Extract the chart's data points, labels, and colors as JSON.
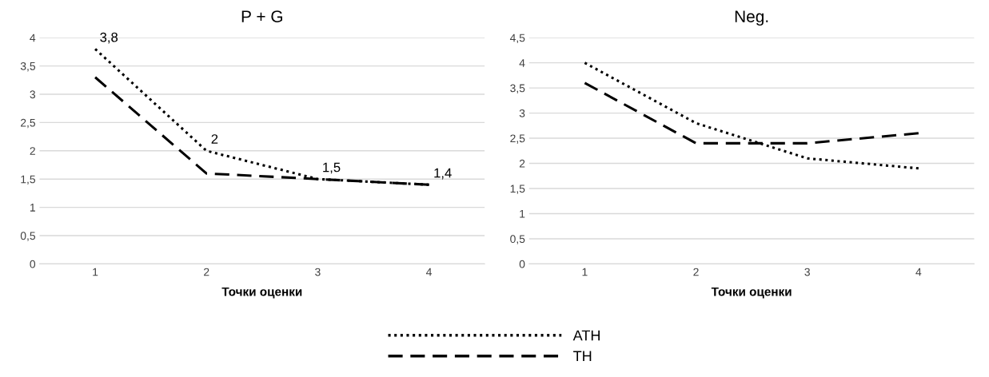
{
  "chart_data": [
    {
      "type": "line",
      "title": "P + G",
      "xlabel": "Точки оценки",
      "categories": [
        "1",
        "2",
        "3",
        "4"
      ],
      "ylim": [
        0,
        4
      ],
      "yticks": [
        0,
        {
          "value": 0.5,
          "label": "0,5"
        },
        1,
        {
          "value": 1.5,
          "label": "1,5"
        },
        2,
        {
          "value": 2.5,
          "label": "2,5"
        },
        3,
        {
          "value": 3.5,
          "label": "3,5"
        },
        4
      ],
      "grid": "y",
      "legend": "bottom",
      "series": [
        {
          "name": "ATH",
          "color": "#000000",
          "line_style": "dotted",
          "values": [
            3.8,
            2,
            1.5,
            1.4
          ],
          "value_labels": [
            "3,8",
            "2",
            "1,5",
            "1,4"
          ]
        },
        {
          "name": "TH",
          "color": "#000000",
          "line_style": "dashed",
          "values": [
            3.3,
            1.6,
            1.5,
            1.4
          ]
        }
      ]
    },
    {
      "type": "line",
      "title": "Neg.",
      "xlabel": "Точки оценки",
      "categories": [
        "1",
        "2",
        "3",
        "4"
      ],
      "ylim": [
        0,
        4.5
      ],
      "yticks": [
        0,
        {
          "value": 0.5,
          "label": "0,5"
        },
        1,
        {
          "value": 1.5,
          "label": "1,5"
        },
        2,
        {
          "value": 2.5,
          "label": "2,5"
        },
        3,
        {
          "value": 3.5,
          "label": "3,5"
        },
        4,
        {
          "value": 4.5,
          "label": "4,5"
        }
      ],
      "grid": "y",
      "series": [
        {
          "color": "#000000",
          "line_style": "dotted",
          "values": [
            4.0,
            2.8,
            2.1,
            1.9
          ]
        },
        {
          "color": "#000000",
          "line_style": "dashed",
          "values": [
            3.6,
            2.4,
            2.4,
            2.6
          ]
        }
      ]
    }
  ]
}
